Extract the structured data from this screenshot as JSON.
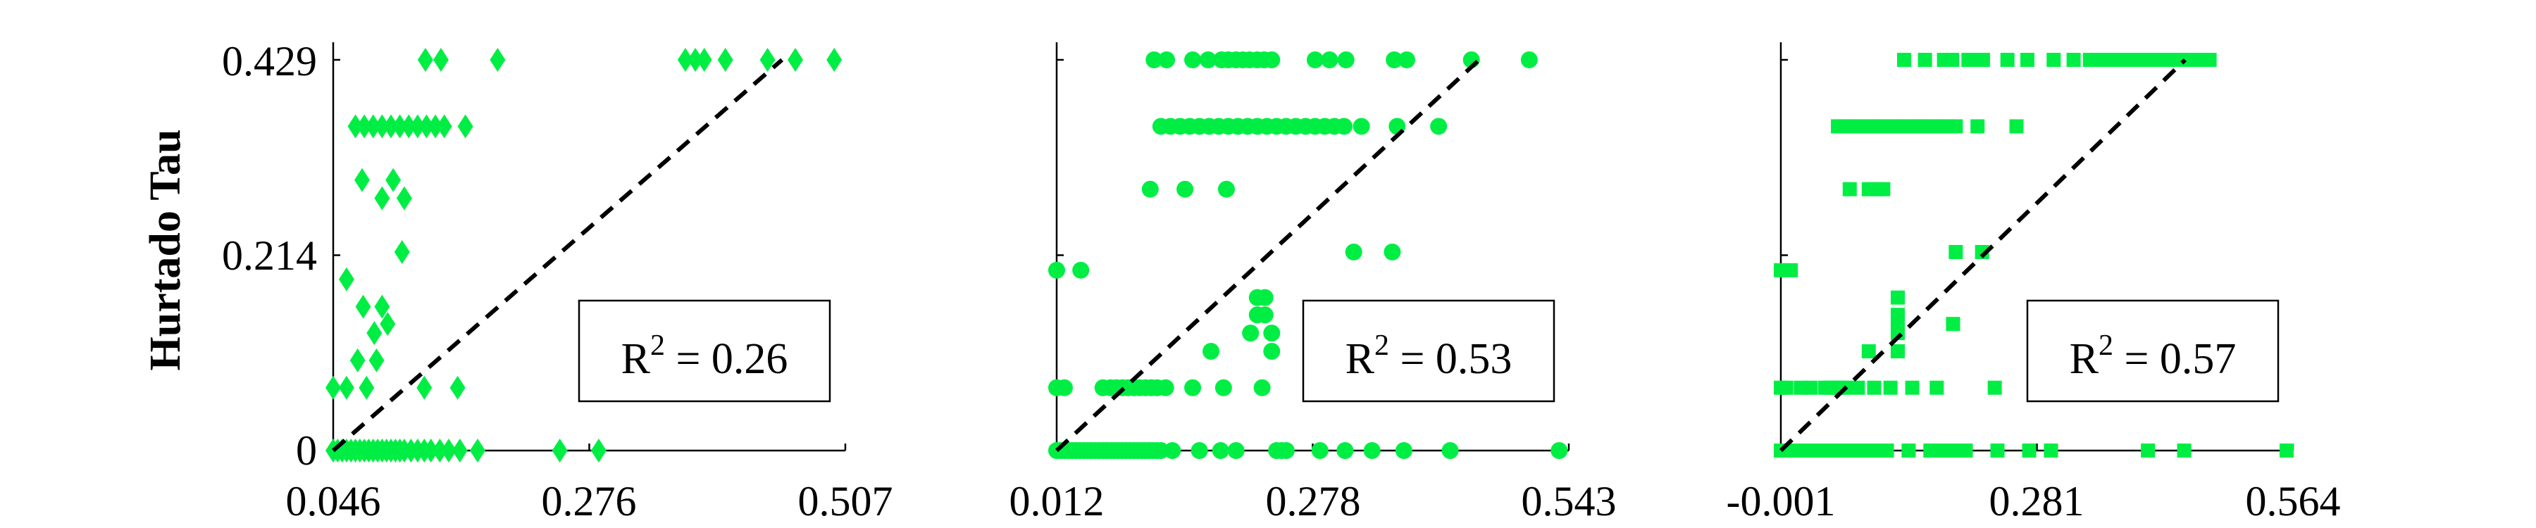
{
  "figure": {
    "ylabel": "Hurtado Tau",
    "y_ticks": [
      "0",
      "0.214",
      "0.429"
    ],
    "line_color": "#000000",
    "marker_color": "#00ee44"
  },
  "chart_data": [
    {
      "type": "scatter",
      "marker": "diamond",
      "xlim": [
        0.046,
        0.507
      ],
      "ylim": [
        0,
        0.429
      ],
      "x_ticks": [
        "0.046",
        "0.276",
        "0.507"
      ],
      "y_ticks": [
        "0",
        "0.214",
        "0.429"
      ],
      "ylabel": "Hurtado Tau",
      "xlabel": "",
      "grid": false,
      "fit_line": {
        "style": "dashed",
        "from": [
          0.046,
          0.0
        ],
        "to": [
          0.45,
          0.429
        ]
      },
      "annotation": {
        "prefix": "R",
        "sup": "2",
        "suffix": " = 0.26"
      },
      "points": [
        [
          0.046,
          0.0
        ],
        [
          0.05,
          0.0
        ],
        [
          0.054,
          0.0
        ],
        [
          0.058,
          0.0
        ],
        [
          0.062,
          0.0
        ],
        [
          0.066,
          0.0
        ],
        [
          0.07,
          0.0
        ],
        [
          0.074,
          0.0
        ],
        [
          0.078,
          0.0
        ],
        [
          0.082,
          0.0
        ],
        [
          0.086,
          0.0
        ],
        [
          0.09,
          0.0
        ],
        [
          0.094,
          0.0
        ],
        [
          0.098,
          0.0
        ],
        [
          0.102,
          0.0
        ],
        [
          0.106,
          0.0
        ],
        [
          0.11,
          0.0
        ],
        [
          0.116,
          0.0
        ],
        [
          0.122,
          0.0
        ],
        [
          0.128,
          0.0
        ],
        [
          0.134,
          0.0
        ],
        [
          0.142,
          0.0
        ],
        [
          0.15,
          0.0
        ],
        [
          0.16,
          0.0
        ],
        [
          0.176,
          0.0
        ],
        [
          0.25,
          0.0
        ],
        [
          0.285,
          0.0
        ],
        [
          0.046,
          0.069
        ],
        [
          0.058,
          0.069
        ],
        [
          0.076,
          0.069
        ],
        [
          0.128,
          0.069
        ],
        [
          0.158,
          0.069
        ],
        [
          0.068,
          0.099
        ],
        [
          0.085,
          0.099
        ],
        [
          0.083,
          0.129
        ],
        [
          0.095,
          0.139
        ],
        [
          0.073,
          0.158
        ],
        [
          0.09,
          0.158
        ],
        [
          0.058,
          0.188
        ],
        [
          0.108,
          0.218
        ],
        [
          0.09,
          0.277
        ],
        [
          0.11,
          0.277
        ],
        [
          0.072,
          0.297
        ],
        [
          0.1,
          0.297
        ],
        [
          0.066,
          0.356
        ],
        [
          0.074,
          0.356
        ],
        [
          0.082,
          0.356
        ],
        [
          0.09,
          0.356
        ],
        [
          0.098,
          0.356
        ],
        [
          0.106,
          0.356
        ],
        [
          0.114,
          0.356
        ],
        [
          0.122,
          0.356
        ],
        [
          0.13,
          0.356
        ],
        [
          0.138,
          0.356
        ],
        [
          0.146,
          0.356
        ],
        [
          0.165,
          0.356
        ],
        [
          0.129,
          0.429
        ],
        [
          0.143,
          0.429
        ],
        [
          0.194,
          0.429
        ],
        [
          0.363,
          0.429
        ],
        [
          0.372,
          0.429
        ],
        [
          0.38,
          0.429
        ],
        [
          0.399,
          0.429
        ],
        [
          0.437,
          0.429
        ],
        [
          0.462,
          0.429
        ],
        [
          0.497,
          0.429
        ]
      ]
    },
    {
      "type": "scatter",
      "marker": "circle",
      "xlim": [
        0.012,
        0.543
      ],
      "ylim": [
        0,
        0.429
      ],
      "x_ticks": [
        "0.012",
        "0.278",
        "0.543"
      ],
      "xlabel": "",
      "grid": false,
      "fit_line": {
        "style": "dashed",
        "from": [
          0.012,
          0.0
        ],
        "to": [
          0.45,
          0.429
        ]
      },
      "annotation": {
        "prefix": "R",
        "sup": "2",
        "suffix": " = 0.53"
      },
      "points": [
        [
          0.012,
          0.0
        ],
        [
          0.016,
          0.0
        ],
        [
          0.02,
          0.0
        ],
        [
          0.024,
          0.0
        ],
        [
          0.028,
          0.0
        ],
        [
          0.032,
          0.0
        ],
        [
          0.036,
          0.0
        ],
        [
          0.04,
          0.0
        ],
        [
          0.044,
          0.0
        ],
        [
          0.048,
          0.0
        ],
        [
          0.052,
          0.0
        ],
        [
          0.056,
          0.0
        ],
        [
          0.06,
          0.0
        ],
        [
          0.064,
          0.0
        ],
        [
          0.068,
          0.0
        ],
        [
          0.072,
          0.0
        ],
        [
          0.076,
          0.0
        ],
        [
          0.08,
          0.0
        ],
        [
          0.084,
          0.0
        ],
        [
          0.088,
          0.0
        ],
        [
          0.092,
          0.0
        ],
        [
          0.096,
          0.0
        ],
        [
          0.1,
          0.0
        ],
        [
          0.104,
          0.0
        ],
        [
          0.108,
          0.0
        ],
        [
          0.112,
          0.0
        ],
        [
          0.116,
          0.0
        ],
        [
          0.12,
          0.0
        ],
        [
          0.132,
          0.0
        ],
        [
          0.16,
          0.0
        ],
        [
          0.182,
          0.0
        ],
        [
          0.198,
          0.0
        ],
        [
          0.24,
          0.0
        ],
        [
          0.245,
          0.0
        ],
        [
          0.25,
          0.0
        ],
        [
          0.285,
          0.0
        ],
        [
          0.311,
          0.0
        ],
        [
          0.339,
          0.0
        ],
        [
          0.372,
          0.0
        ],
        [
          0.42,
          0.0
        ],
        [
          0.533,
          0.0
        ],
        [
          0.012,
          0.069
        ],
        [
          0.02,
          0.069
        ],
        [
          0.06,
          0.069
        ],
        [
          0.068,
          0.069
        ],
        [
          0.074,
          0.069
        ],
        [
          0.08,
          0.069
        ],
        [
          0.086,
          0.069
        ],
        [
          0.092,
          0.069
        ],
        [
          0.098,
          0.069
        ],
        [
          0.104,
          0.069
        ],
        [
          0.11,
          0.069
        ],
        [
          0.116,
          0.069
        ],
        [
          0.125,
          0.069
        ],
        [
          0.153,
          0.069
        ],
        [
          0.185,
          0.069
        ],
        [
          0.225,
          0.069
        ],
        [
          0.172,
          0.109
        ],
        [
          0.235,
          0.109
        ],
        [
          0.213,
          0.129
        ],
        [
          0.235,
          0.129
        ],
        [
          0.31,
          0.139
        ],
        [
          0.32,
          0.139
        ],
        [
          0.22,
          0.149
        ],
        [
          0.228,
          0.149
        ],
        [
          0.22,
          0.168
        ],
        [
          0.228,
          0.168
        ],
        [
          0.012,
          0.198
        ],
        [
          0.037,
          0.198
        ],
        [
          0.32,
          0.218
        ],
        [
          0.36,
          0.218
        ],
        [
          0.109,
          0.287
        ],
        [
          0.145,
          0.287
        ],
        [
          0.188,
          0.287
        ],
        [
          0.12,
          0.356
        ],
        [
          0.13,
          0.356
        ],
        [
          0.14,
          0.356
        ],
        [
          0.15,
          0.356
        ],
        [
          0.16,
          0.356
        ],
        [
          0.17,
          0.356
        ],
        [
          0.18,
          0.356
        ],
        [
          0.19,
          0.356
        ],
        [
          0.2,
          0.356
        ],
        [
          0.21,
          0.356
        ],
        [
          0.22,
          0.356
        ],
        [
          0.23,
          0.356
        ],
        [
          0.24,
          0.356
        ],
        [
          0.25,
          0.356
        ],
        [
          0.26,
          0.356
        ],
        [
          0.27,
          0.356
        ],
        [
          0.28,
          0.356
        ],
        [
          0.29,
          0.356
        ],
        [
          0.3,
          0.356
        ],
        [
          0.31,
          0.356
        ],
        [
          0.328,
          0.356
        ],
        [
          0.365,
          0.356
        ],
        [
          0.408,
          0.356
        ],
        [
          0.113,
          0.429
        ],
        [
          0.126,
          0.429
        ],
        [
          0.153,
          0.429
        ],
        [
          0.169,
          0.429
        ],
        [
          0.183,
          0.429
        ],
        [
          0.19,
          0.429
        ],
        [
          0.198,
          0.429
        ],
        [
          0.205,
          0.429
        ],
        [
          0.212,
          0.429
        ],
        [
          0.22,
          0.429
        ],
        [
          0.227,
          0.429
        ],
        [
          0.235,
          0.429
        ],
        [
          0.28,
          0.429
        ],
        [
          0.295,
          0.429
        ],
        [
          0.312,
          0.429
        ],
        [
          0.362,
          0.429
        ],
        [
          0.375,
          0.429
        ],
        [
          0.442,
          0.429
        ],
        [
          0.502,
          0.429
        ]
      ]
    },
    {
      "type": "scatter",
      "marker": "square",
      "xlim": [
        -0.001,
        0.564
      ],
      "ylim": [
        0,
        0.429
      ],
      "x_ticks": [
        "-0.001",
        "0.281",
        "0.564"
      ],
      "xlabel": "",
      "grid": false,
      "fit_line": {
        "style": "dashed",
        "from": [
          -0.001,
          0.0
        ],
        "to": [
          0.445,
          0.429
        ]
      },
      "annotation": {
        "prefix": "R",
        "sup": "2",
        "suffix": " = 0.57"
      },
      "points": [
        [
          -0.001,
          0.0
        ],
        [
          0.004,
          0.0
        ],
        [
          0.009,
          0.0
        ],
        [
          0.014,
          0.0
        ],
        [
          0.019,
          0.0
        ],
        [
          0.024,
          0.0
        ],
        [
          0.029,
          0.0
        ],
        [
          0.034,
          0.0
        ],
        [
          0.039,
          0.0
        ],
        [
          0.044,
          0.0
        ],
        [
          0.049,
          0.0
        ],
        [
          0.054,
          0.0
        ],
        [
          0.059,
          0.0
        ],
        [
          0.064,
          0.0
        ],
        [
          0.069,
          0.0
        ],
        [
          0.074,
          0.0
        ],
        [
          0.079,
          0.0
        ],
        [
          0.084,
          0.0
        ],
        [
          0.089,
          0.0
        ],
        [
          0.094,
          0.0
        ],
        [
          0.099,
          0.0
        ],
        [
          0.104,
          0.0
        ],
        [
          0.116,
          0.0
        ],
        [
          0.14,
          0.0
        ],
        [
          0.164,
          0.0
        ],
        [
          0.178,
          0.0
        ],
        [
          0.188,
          0.0
        ],
        [
          0.196,
          0.0
        ],
        [
          0.203,
          0.0
        ],
        [
          0.238,
          0.0
        ],
        [
          0.273,
          0.0
        ],
        [
          0.297,
          0.0
        ],
        [
          0.404,
          0.0
        ],
        [
          0.444,
          0.0
        ],
        [
          0.557,
          0.0
        ],
        [
          -0.001,
          0.069
        ],
        [
          0.005,
          0.069
        ],
        [
          0.021,
          0.069
        ],
        [
          0.032,
          0.069
        ],
        [
          0.048,
          0.069
        ],
        [
          0.053,
          0.069
        ],
        [
          0.058,
          0.069
        ],
        [
          0.064,
          0.069
        ],
        [
          0.069,
          0.069
        ],
        [
          0.084,
          0.069
        ],
        [
          0.102,
          0.069
        ],
        [
          0.12,
          0.069
        ],
        [
          0.144,
          0.069
        ],
        [
          0.171,
          0.069
        ],
        [
          0.235,
          0.069
        ],
        [
          0.096,
          0.109
        ],
        [
          0.128,
          0.109
        ],
        [
          0.128,
          0.129
        ],
        [
          0.128,
          0.139
        ],
        [
          0.189,
          0.139
        ],
        [
          0.128,
          0.149
        ],
        [
          0.128,
          0.168
        ],
        [
          -0.001,
          0.198
        ],
        [
          0.01,
          0.198
        ],
        [
          0.192,
          0.218
        ],
        [
          0.221,
          0.218
        ],
        [
          0.075,
          0.287
        ],
        [
          0.096,
          0.287
        ],
        [
          0.105,
          0.287
        ],
        [
          0.112,
          0.287
        ],
        [
          0.062,
          0.356
        ],
        [
          0.068,
          0.356
        ],
        [
          0.075,
          0.356
        ],
        [
          0.081,
          0.356
        ],
        [
          0.088,
          0.356
        ],
        [
          0.094,
          0.356
        ],
        [
          0.101,
          0.356
        ],
        [
          0.107,
          0.356
        ],
        [
          0.114,
          0.356
        ],
        [
          0.12,
          0.356
        ],
        [
          0.127,
          0.356
        ],
        [
          0.133,
          0.356
        ],
        [
          0.14,
          0.356
        ],
        [
          0.146,
          0.356
        ],
        [
          0.153,
          0.356
        ],
        [
          0.159,
          0.356
        ],
        [
          0.166,
          0.356
        ],
        [
          0.172,
          0.356
        ],
        [
          0.179,
          0.356
        ],
        [
          0.185,
          0.356
        ],
        [
          0.192,
          0.356
        ],
        [
          0.216,
          0.356
        ],
        [
          0.259,
          0.356
        ],
        [
          0.135,
          0.429
        ],
        [
          0.158,
          0.429
        ],
        [
          0.179,
          0.429
        ],
        [
          0.188,
          0.429
        ],
        [
          0.206,
          0.429
        ],
        [
          0.214,
          0.429
        ],
        [
          0.222,
          0.429
        ],
        [
          0.249,
          0.429
        ],
        [
          0.271,
          0.429
        ],
        [
          0.3,
          0.429
        ],
        [
          0.322,
          0.429
        ],
        [
          0.34,
          0.429
        ],
        [
          0.352,
          0.429
        ],
        [
          0.364,
          0.429
        ],
        [
          0.376,
          0.429
        ],
        [
          0.388,
          0.429
        ],
        [
          0.4,
          0.429
        ],
        [
          0.412,
          0.429
        ],
        [
          0.424,
          0.429
        ],
        [
          0.436,
          0.429
        ],
        [
          0.448,
          0.429
        ],
        [
          0.46,
          0.429
        ],
        [
          0.472,
          0.429
        ]
      ]
    }
  ]
}
